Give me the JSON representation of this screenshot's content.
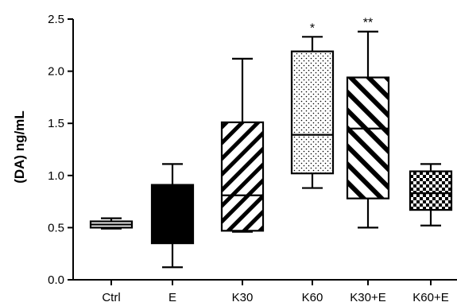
{
  "chart_data": {
    "type": "box",
    "title": "",
    "xlabel": "",
    "ylabel": "(DA) ng/mL",
    "ylim": [
      0.0,
      2.5
    ],
    "yticks": [
      "0.0",
      "0.5",
      "1.0",
      "1.5",
      "2.0",
      "2.5"
    ],
    "grid": false,
    "legend": "none",
    "categories": [
      "Ctrl",
      "E",
      "K30",
      "K60",
      "K30+E",
      "K60+E"
    ],
    "boxes": [
      {
        "category": "Ctrl",
        "min": 0.49,
        "q1": 0.5,
        "median": 0.53,
        "q3": 0.56,
        "max": 0.59,
        "fill": "white",
        "annotation": ""
      },
      {
        "category": "E",
        "min": 0.12,
        "q1": 0.35,
        "median": 0.9,
        "q3": 0.91,
        "max": 1.11,
        "fill": "solid-black",
        "annotation": ""
      },
      {
        "category": "K30",
        "min": 0.46,
        "q1": 0.47,
        "median": 0.81,
        "q3": 1.51,
        "max": 2.12,
        "fill": "hatch-diagonal-thin",
        "annotation": ""
      },
      {
        "category": "K60",
        "min": 0.88,
        "q1": 1.02,
        "median": 1.39,
        "q3": 2.19,
        "max": 2.33,
        "fill": "dots",
        "annotation": "*"
      },
      {
        "category": "K30+E",
        "min": 0.5,
        "q1": 0.78,
        "median": 1.45,
        "q3": 1.94,
        "max": 2.38,
        "fill": "hatch-diagonal-thick",
        "annotation": "**"
      },
      {
        "category": "K60+E",
        "min": 0.52,
        "q1": 0.67,
        "median": 0.83,
        "q3": 1.04,
        "max": 1.11,
        "fill": "checkerboard",
        "annotation": ""
      }
    ]
  }
}
